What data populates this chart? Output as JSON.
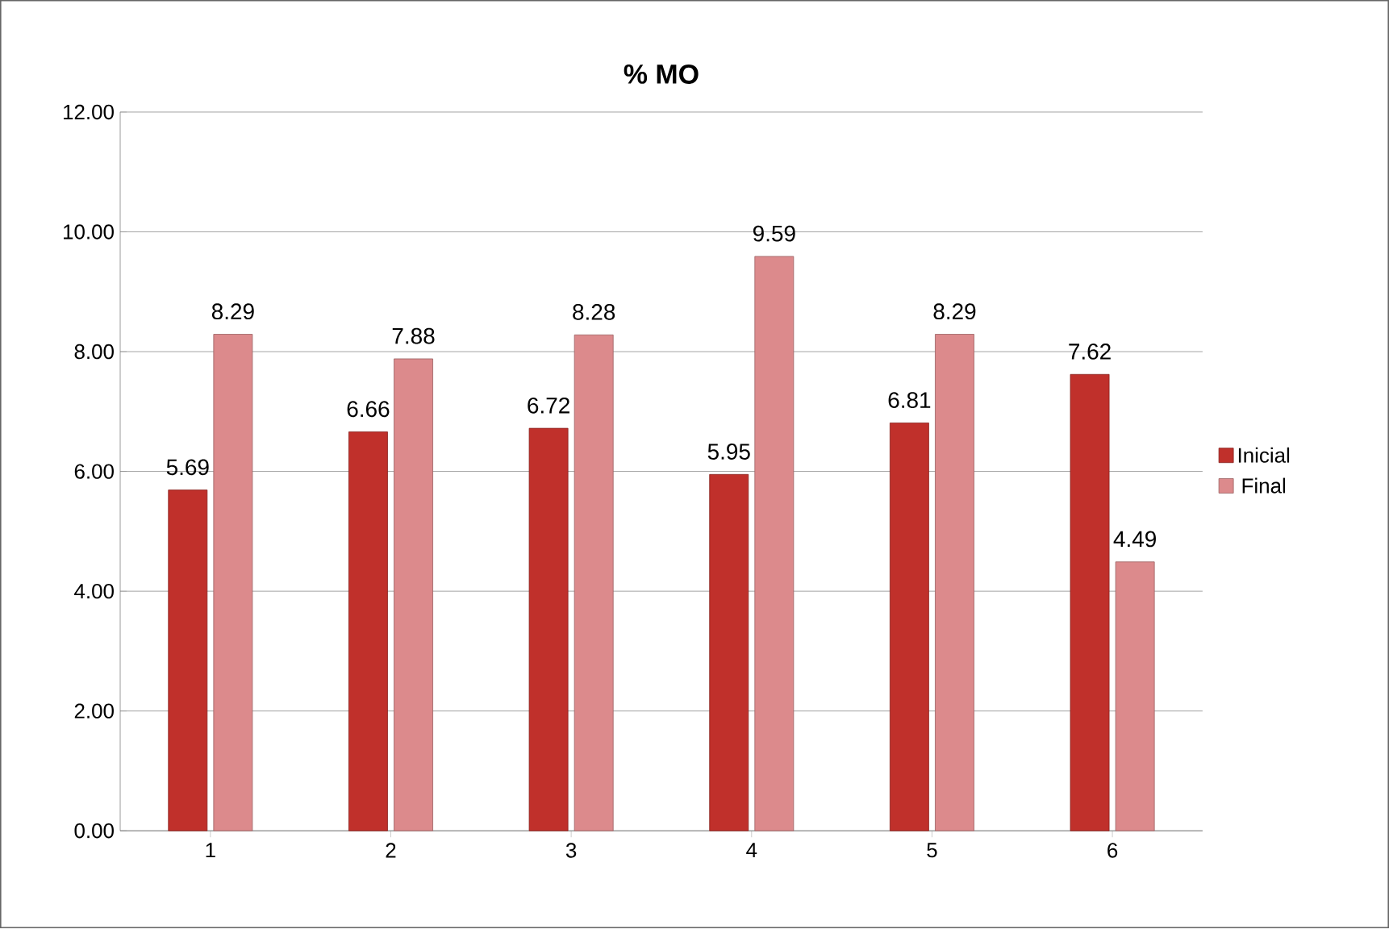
{
  "chart_data": {
    "type": "bar",
    "title": "% MO",
    "categories": [
      "1",
      "2",
      "3",
      "4",
      "5",
      "6"
    ],
    "series": [
      {
        "name": "Inicial",
        "color": "#c0302b",
        "values": [
          5.69,
          6.66,
          6.72,
          5.95,
          6.81,
          7.62
        ]
      },
      {
        "name": "Final",
        "color": "#dc8a8c",
        "values": [
          8.29,
          7.88,
          8.28,
          9.59,
          8.29,
          4.49
        ]
      }
    ],
    "ylim": [
      0,
      12
    ],
    "yticks": [
      {
        "value": 0,
        "label": "0.00"
      },
      {
        "value": 2,
        "label": "2.00"
      },
      {
        "value": 4,
        "label": "4.00"
      },
      {
        "value": 6,
        "label": "6.00"
      },
      {
        "value": 8,
        "label": "8.00"
      },
      {
        "value": 10,
        "label": "10.00"
      },
      {
        "value": 12,
        "label": "12.00"
      }
    ],
    "grid": "y",
    "legend": "right",
    "data_labels": true
  }
}
